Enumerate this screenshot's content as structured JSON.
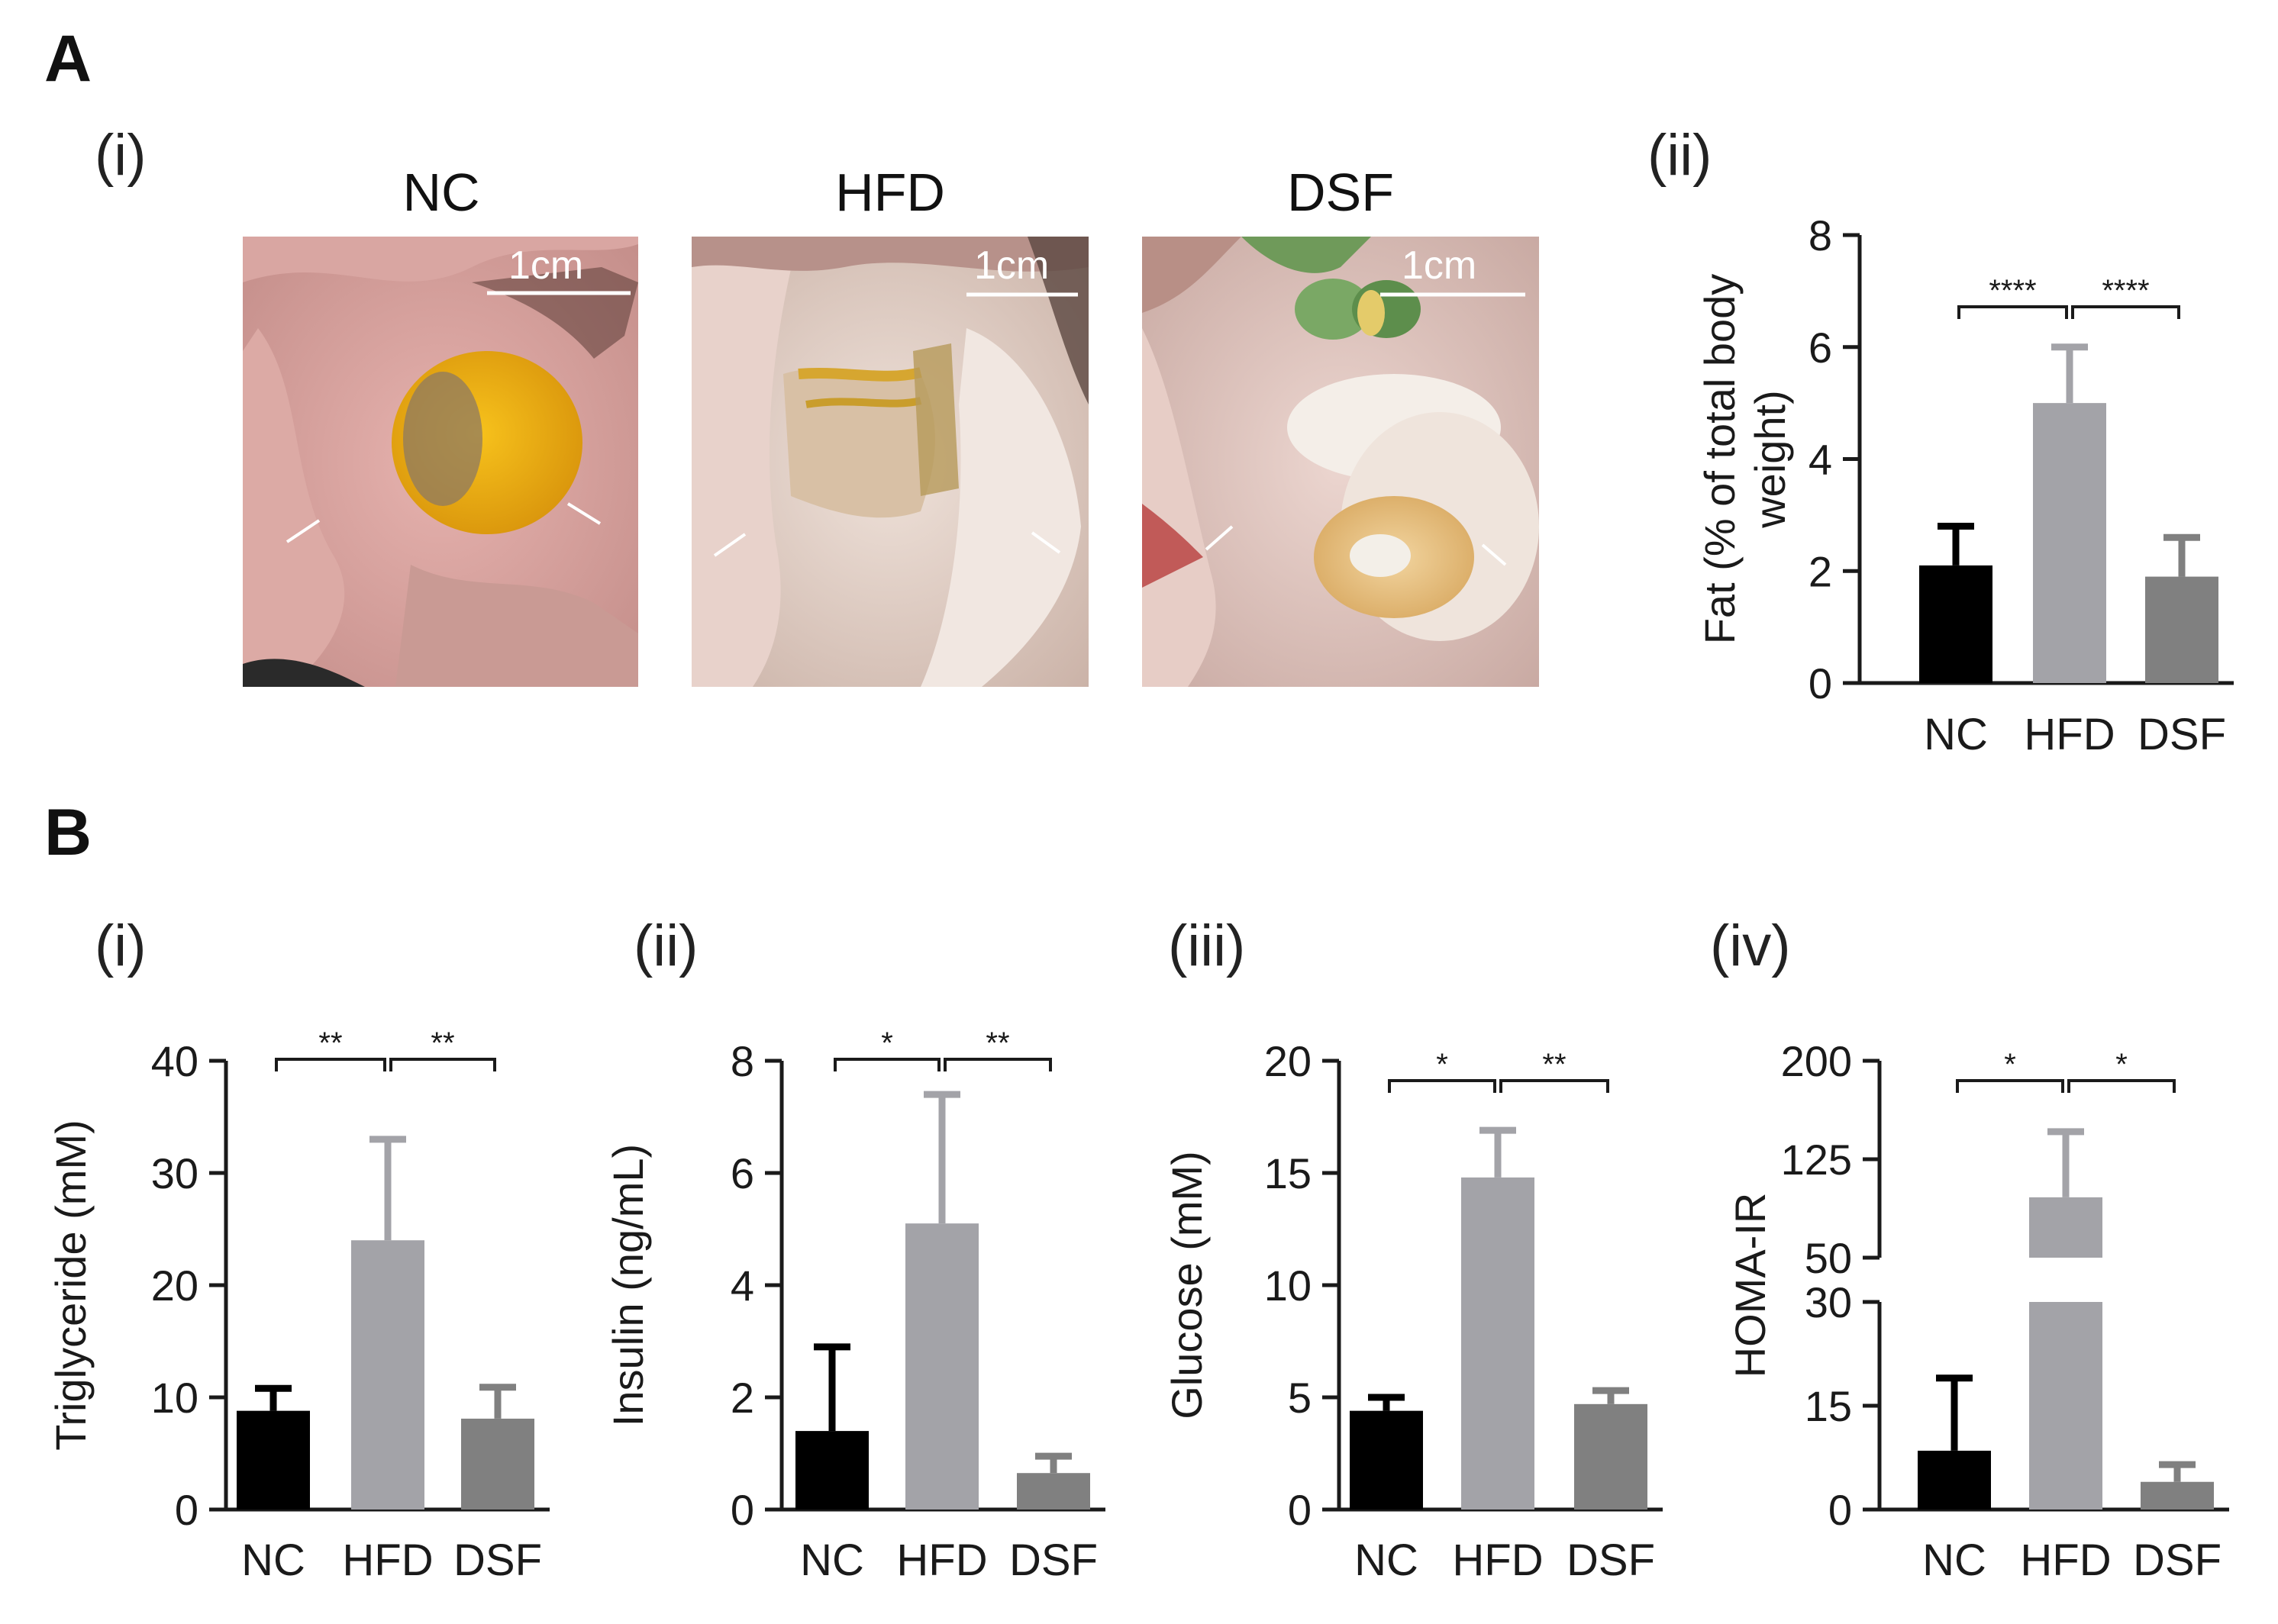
{
  "panels": {
    "A": {
      "label": "A",
      "photos_sublabel": "(i)",
      "chart_sublabel": "(ii)",
      "photos": [
        {
          "title": "NC",
          "scale_label": "1cm"
        },
        {
          "title": "HFD",
          "scale_label": "1cm"
        },
        {
          "title": "DSF",
          "scale_label": "1cm"
        }
      ]
    },
    "B": {
      "label": "B",
      "sublabels": [
        "(i)",
        "(ii)",
        "(iii)",
        "(iv)"
      ]
    }
  },
  "colors": {
    "NC": "#000000",
    "HFD": "#a3a3a8",
    "DSF": "#808080"
  },
  "chart_data": [
    {
      "id": "A-ii",
      "type": "bar",
      "categories": [
        "NC",
        "HFD",
        "DSF"
      ],
      "values": [
        2.1,
        5.0,
        1.9
      ],
      "errors": [
        0.7,
        1.0,
        0.7
      ],
      "ylabel": "Fat (% of total body weight)",
      "ylim": [
        0,
        8
      ],
      "yticks": [
        "0",
        "2",
        "4",
        "6",
        "8"
      ],
      "significance": [
        {
          "from": "NC",
          "to": "HFD",
          "label": "****"
        },
        {
          "from": "HFD",
          "to": "DSF",
          "label": "****"
        }
      ]
    },
    {
      "id": "B-i",
      "type": "bar",
      "categories": [
        "NC",
        "HFD",
        "DSF"
      ],
      "values": [
        8.8,
        24.0,
        8.1
      ],
      "errors": [
        2.0,
        9.0,
        2.8
      ],
      "ylabel": "Triglyceride (mM)",
      "ylim": [
        0,
        40
      ],
      "yticks": [
        "0",
        "10",
        "20",
        "30",
        "40"
      ],
      "significance": [
        {
          "from": "NC",
          "to": "HFD",
          "label": "**"
        },
        {
          "from": "HFD",
          "to": "DSF",
          "label": "**"
        }
      ]
    },
    {
      "id": "B-ii",
      "type": "bar",
      "categories": [
        "NC",
        "HFD",
        "DSF"
      ],
      "values": [
        1.4,
        5.1,
        0.65
      ],
      "errors": [
        1.5,
        2.3,
        0.3
      ],
      "ylabel": "Insulin (ng/mL)",
      "ylim": [
        0,
        8
      ],
      "yticks": [
        "0",
        "2",
        "4",
        "6",
        "8"
      ],
      "significance": [
        {
          "from": "NC",
          "to": "HFD",
          "label": "*"
        },
        {
          "from": "HFD",
          "to": "DSF",
          "label": "**"
        }
      ]
    },
    {
      "id": "B-iii",
      "type": "bar",
      "categories": [
        "NC",
        "HFD",
        "DSF"
      ],
      "values": [
        4.4,
        14.8,
        4.7
      ],
      "errors": [
        0.6,
        2.1,
        0.6
      ],
      "ylabel": "Glucose (mM)",
      "ylim": [
        0,
        20
      ],
      "yticks": [
        "0",
        "5",
        "10",
        "15",
        "20"
      ],
      "significance": [
        {
          "from": "NC",
          "to": "HFD",
          "label": "*"
        },
        {
          "from": "HFD",
          "to": "DSF",
          "label": "**"
        }
      ]
    },
    {
      "id": "B-iv",
      "type": "bar",
      "categories": [
        "NC",
        "HFD",
        "DSF"
      ],
      "values": [
        8.5,
        96,
        4.0
      ],
      "errors": [
        10.5,
        50,
        2.5
      ],
      "ylabel": "HOMA-IR",
      "axis_break": {
        "lower": [
          0,
          30
        ],
        "upper": [
          50,
          200
        ]
      },
      "yticks_lower": [
        "0",
        "15",
        "30"
      ],
      "yticks_upper": [
        "50",
        "125",
        "200"
      ],
      "significance": [
        {
          "from": "NC",
          "to": "HFD",
          "label": "*"
        },
        {
          "from": "HFD",
          "to": "DSF",
          "label": "*"
        }
      ]
    }
  ]
}
